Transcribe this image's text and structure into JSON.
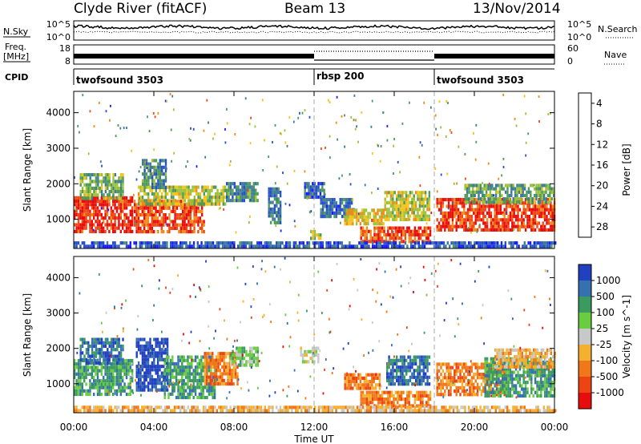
{
  "header": {
    "station": "Clyde River (fitACF)",
    "beam": "Beam 13",
    "date": "13/Nov/2014"
  },
  "noise_panel": {
    "left_label": "N.Sky",
    "right_label": "N.Search",
    "ytick_top": "10^5",
    "ytick_bottom": "10^0",
    "rtick_top": "10^5",
    "rtick_bottom": "10^0"
  },
  "freq_panel": {
    "left_label_line1": "Freq.",
    "left_label_line2": "[MHz]",
    "right_label": "Nave",
    "ytick_top": "18",
    "ytick_bottom": "8",
    "rtick_top": "60",
    "rtick_bottom": "0"
  },
  "cpid_panel": {
    "label": "CPID",
    "segments": [
      {
        "name": "twofsound 3503",
        "start_h": 0,
        "end_h": 12
      },
      {
        "name": "rbsp 200",
        "start_h": 12,
        "end_h": 18
      },
      {
        "name": "twofsound 3503",
        "start_h": 18,
        "end_h": 24
      }
    ]
  },
  "chart_data": [
    {
      "type": "heatmap",
      "name": "power",
      "ylabel": "Slant Range [km]",
      "xlabel": "Time UT",
      "xlim": [
        0,
        24
      ],
      "ylim": [
        180,
        4600
      ],
      "yticks": [
        "1000",
        "2000",
        "3000",
        "4000"
      ],
      "ytick_values": [
        1000,
        2000,
        3000,
        4000
      ],
      "colorbar": {
        "label": "Power [dB]",
        "range": [
          0,
          32
        ],
        "ticks": [
          "4",
          "8",
          "12",
          "16",
          "20",
          "24",
          "28"
        ],
        "tick_values": [
          4,
          8,
          12,
          16,
          20,
          24,
          28
        ],
        "colors": [
          "#1a1aff",
          "#2850c8",
          "#3d7b9a",
          "#4f9a5a",
          "#9cc23a",
          "#f2c41c",
          "#f08c1a",
          "#ee4a14",
          "#e80c0c"
        ]
      },
      "regions": [
        {
          "t0": 0.0,
          "t1": 2.9,
          "r0": 700,
          "r1": 1650,
          "v": 29
        },
        {
          "t0": 0.3,
          "t1": 2.5,
          "r0": 1600,
          "r1": 2300,
          "v": 14
        },
        {
          "t0": 3.0,
          "t1": 6.5,
          "r0": 650,
          "r1": 1550,
          "v": 27
        },
        {
          "t0": 3.2,
          "t1": 7.6,
          "r0": 1450,
          "r1": 1950,
          "v": 17
        },
        {
          "t0": 3.4,
          "t1": 4.6,
          "r0": 1900,
          "r1": 2700,
          "v": 10
        },
        {
          "t0": 7.6,
          "t1": 9.2,
          "r0": 1550,
          "r1": 2050,
          "v": 10
        },
        {
          "t0": 9.7,
          "t1": 10.3,
          "r0": 900,
          "r1": 1900,
          "v": 8
        },
        {
          "t0": 11.5,
          "t1": 12.5,
          "r0": 1650,
          "r1": 2050,
          "v": 7
        },
        {
          "t0": 11.8,
          "t1": 12.3,
          "r0": 500,
          "r1": 700,
          "v": 16
        },
        {
          "t0": 12.3,
          "t1": 14.0,
          "r0": 1100,
          "r1": 1600,
          "v": 8
        },
        {
          "t0": 13.5,
          "t1": 15.5,
          "r0": 900,
          "r1": 1300,
          "v": 20
        },
        {
          "t0": 14.3,
          "t1": 17.8,
          "r0": 380,
          "r1": 800,
          "v": 27
        },
        {
          "t0": 15.5,
          "t1": 17.8,
          "r0": 1000,
          "r1": 1800,
          "v": 18
        },
        {
          "t0": 18.1,
          "t1": 24.0,
          "r0": 700,
          "r1": 1600,
          "v": 28
        },
        {
          "t0": 19.5,
          "t1": 24.0,
          "r0": 1450,
          "r1": 2000,
          "v": 13
        },
        {
          "t0": 0.0,
          "t1": 24.0,
          "r0": 200,
          "r1": 380,
          "v": 6
        }
      ]
    },
    {
      "type": "heatmap",
      "name": "velocity",
      "ylabel": "Slant Range [km]",
      "xlabel": "Time UT",
      "xlim": [
        0,
        24
      ],
      "ylim": [
        180,
        4600
      ],
      "yticks": [
        "1000",
        "2000",
        "3000",
        "4000"
      ],
      "ytick_values": [
        1000,
        2000,
        3000,
        4000
      ],
      "colorbar": {
        "label": "Velocity [m s^-1]",
        "ticks": [
          "1000",
          "500",
          "100",
          "25",
          "-25",
          "-100",
          "-500",
          "-1000"
        ],
        "colors": [
          "#2040c0",
          "#3570b0",
          "#3a9a60",
          "#6acc40",
          "#c8c8c8",
          "#f5b030",
          "#f07818",
          "#ee4414",
          "#e80c0c"
        ]
      },
      "regions": [
        {
          "t0": 0.0,
          "t1": 2.9,
          "r0": 700,
          "r1": 1700,
          "c": 2
        },
        {
          "t0": 0.3,
          "t1": 2.5,
          "r0": 1600,
          "r1": 2300,
          "c": 1
        },
        {
          "t0": 3.1,
          "t1": 4.7,
          "r0": 800,
          "r1": 2300,
          "c": 0
        },
        {
          "t0": 4.5,
          "t1": 7.0,
          "r0": 600,
          "r1": 1800,
          "c": 2
        },
        {
          "t0": 6.5,
          "t1": 8.2,
          "r0": 1000,
          "r1": 1900,
          "c": 6
        },
        {
          "t0": 7.8,
          "t1": 9.2,
          "r0": 1500,
          "r1": 2050,
          "c": 3
        },
        {
          "t0": 11.3,
          "t1": 12.2,
          "r0": 1600,
          "r1": 2050,
          "c": 4
        },
        {
          "t0": 13.5,
          "t1": 15.3,
          "r0": 900,
          "r1": 1300,
          "c": 6
        },
        {
          "t0": 14.3,
          "t1": 17.8,
          "r0": 380,
          "r1": 800,
          "c": 6
        },
        {
          "t0": 15.6,
          "t1": 17.8,
          "r0": 1000,
          "r1": 1800,
          "c": 1
        },
        {
          "t0": 18.1,
          "t1": 21.5,
          "r0": 700,
          "r1": 1600,
          "c": 6
        },
        {
          "t0": 20.5,
          "t1": 24.0,
          "r0": 700,
          "r1": 1750,
          "c": 2
        },
        {
          "t0": 21.0,
          "t1": 24.0,
          "r0": 1450,
          "r1": 2000,
          "c": 5
        },
        {
          "t0": 0.0,
          "t1": 24.0,
          "r0": 200,
          "r1": 380,
          "c": 5
        }
      ]
    }
  ],
  "xaxis": {
    "ticks": [
      "00:00",
      "04:00",
      "08:00",
      "12:00",
      "16:00",
      "20:00",
      "00:00"
    ],
    "tick_values": [
      0,
      4,
      8,
      12,
      16,
      20,
      24
    ],
    "label": "Time UT"
  }
}
